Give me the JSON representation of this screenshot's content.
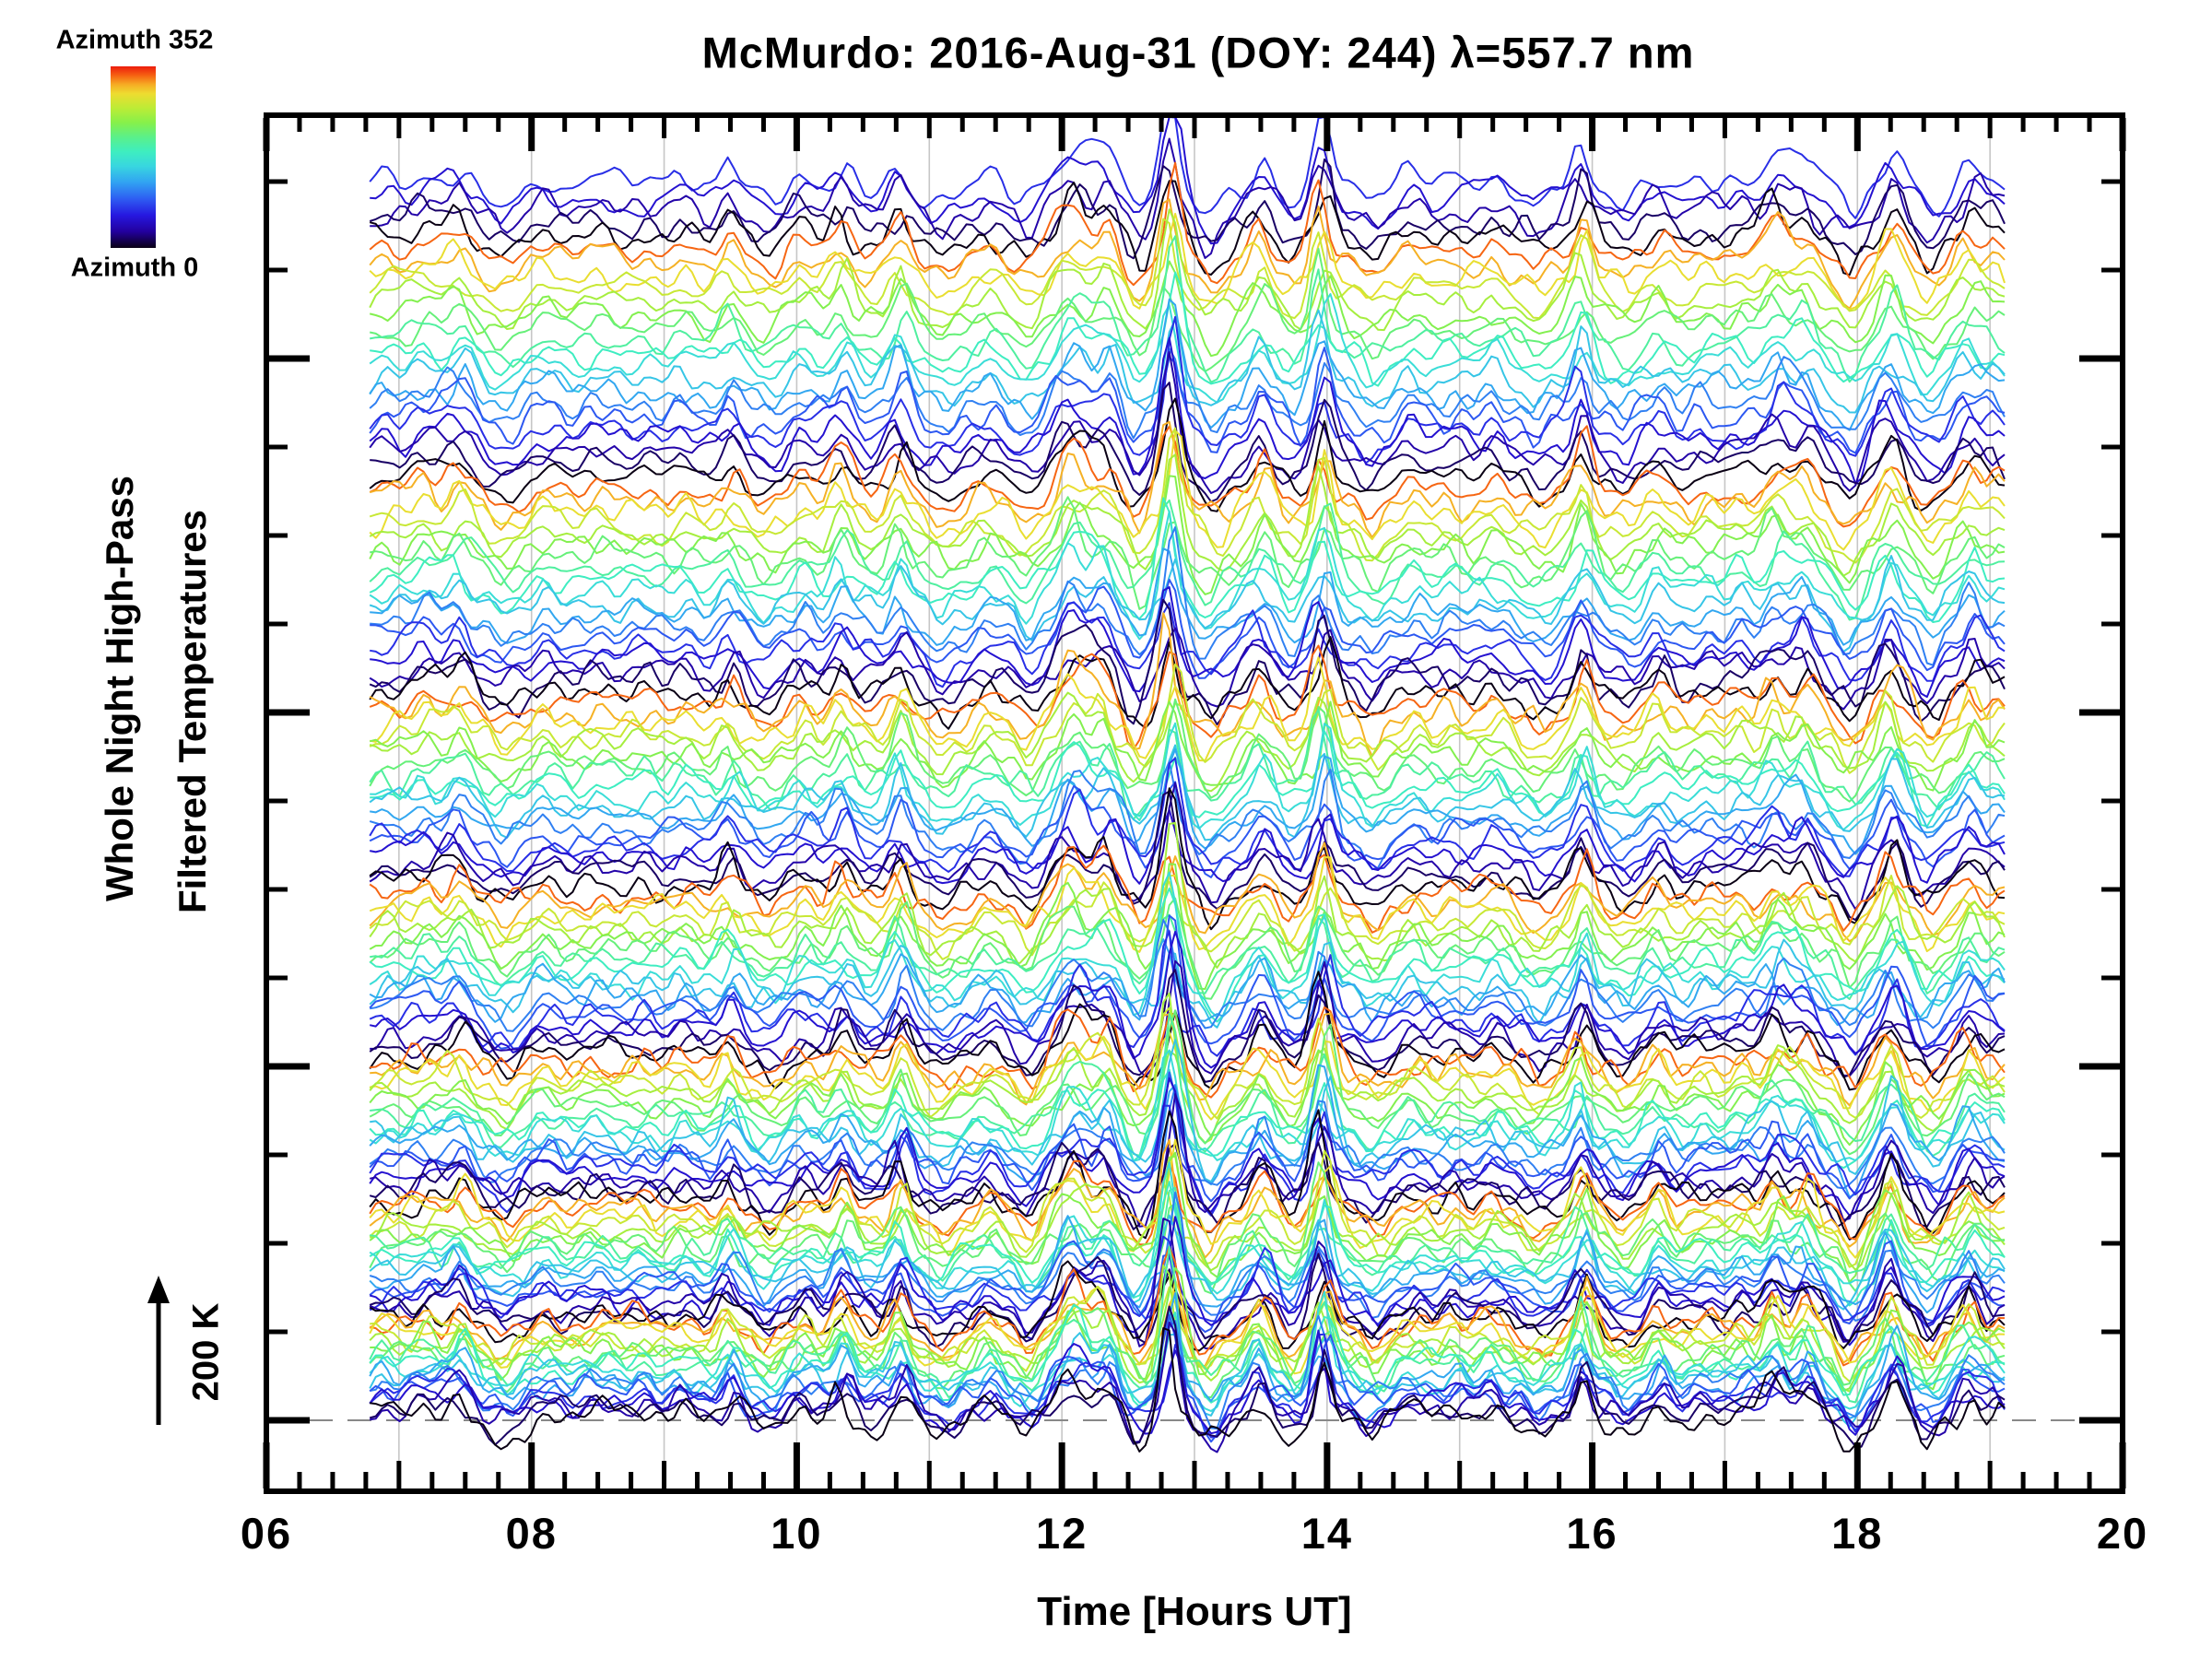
{
  "title": "McMurdo: 2016-Aug-31 (DOY: 244) λ=557.7 nm",
  "colorbar": {
    "top_label": "Azimuth 352",
    "bottom_label": "Azimuth 0",
    "gradient_stops": [
      {
        "t": 0.0,
        "color": "#0a0014"
      },
      {
        "t": 0.09,
        "color": "#23009e"
      },
      {
        "t": 0.18,
        "color": "#2618e0"
      },
      {
        "t": 0.27,
        "color": "#2e5df2"
      },
      {
        "t": 0.36,
        "color": "#31a2f2"
      },
      {
        "t": 0.45,
        "color": "#38d6e0"
      },
      {
        "t": 0.53,
        "color": "#3eeec0"
      },
      {
        "t": 0.61,
        "color": "#5af08a"
      },
      {
        "t": 0.69,
        "color": "#86f04a"
      },
      {
        "t": 0.77,
        "color": "#bcec36"
      },
      {
        "t": 0.85,
        "color": "#eedc30"
      },
      {
        "t": 0.9,
        "color": "#f6ac24"
      },
      {
        "t": 0.95,
        "color": "#f66212"
      },
      {
        "t": 1.0,
        "color": "#ec1c0c"
      }
    ]
  },
  "y_axis": {
    "label_lines": [
      "Whole Night High-Pass",
      "Filtered Temperatures"
    ]
  },
  "scale_arrow": {
    "label": "200 K"
  },
  "x_axis": {
    "label": "Time [Hours UT]",
    "major_tick_hours": [
      6,
      8,
      10,
      12,
      14,
      16,
      18,
      20
    ],
    "major_tick_labels": [
      "06",
      "08",
      "10",
      "12",
      "14",
      "16",
      "18",
      "20"
    ],
    "minor_tick_step_hours": 0.25,
    "gridline_hours": [
      7,
      8,
      9,
      10,
      11,
      12,
      13,
      14,
      15,
      16,
      17,
      18,
      19
    ],
    "range": [
      6,
      20
    ]
  },
  "colors": {
    "gridline": "#c6c6c6",
    "dashed_reference": "#888888",
    "frame": "#000000"
  },
  "chart_data": {
    "type": "line",
    "title": "McMurdo: 2016-Aug-31 (DOY: 244) λ=557.7 nm",
    "xlabel": "Time [Hours UT]",
    "ylabel": "Whole Night High-Pass Filtered Temperatures",
    "legend": {
      "colorbar_top": "Azimuth 352",
      "colorbar_bottom": "Azimuth 0"
    },
    "x_axis_range_hours": [
      6,
      20
    ],
    "data_x_range_hours": [
      6.78,
      19.12
    ],
    "temperature_scale_bar_K": 200,
    "n_traces": 138,
    "traces_per_color_cycle": 19,
    "azimuth_color_min": 0,
    "azimuth_color_max": 352,
    "black_trace_color_index_in_cycle": 4,
    "sample_step_hours": 0.045,
    "grid": "vertical gridlines at every hour",
    "dashed_line": "horizontal dashed gray reference line at bottom-trace baseline",
    "wave_events": [
      {
        "t": 6.9,
        "amp": 12,
        "w": 0.12
      },
      {
        "t": 7.2,
        "amp": 20,
        "w": 0.12
      },
      {
        "t": 7.45,
        "amp": 30,
        "w": 0.1
      },
      {
        "t": 7.8,
        "amp": -14,
        "w": 0.12
      },
      {
        "t": 8.1,
        "amp": 14,
        "w": 0.12
      },
      {
        "t": 8.5,
        "amp": 12,
        "w": 0.15
      },
      {
        "t": 8.85,
        "amp": 10,
        "w": 0.12
      },
      {
        "t": 9.15,
        "amp": 14,
        "w": 0.1
      },
      {
        "t": 9.5,
        "amp": 28,
        "w": 0.08
      },
      {
        "t": 9.78,
        "amp": -12,
        "w": 0.1
      },
      {
        "t": 10.05,
        "amp": 18,
        "w": 0.1
      },
      {
        "t": 10.35,
        "amp": 34,
        "w": 0.09
      },
      {
        "t": 10.78,
        "amp": 38,
        "w": 0.08
      },
      {
        "t": 11.1,
        "amp": -16,
        "w": 0.12
      },
      {
        "t": 11.45,
        "amp": 14,
        "w": 0.1
      },
      {
        "t": 11.75,
        "amp": -18,
        "w": 0.1
      },
      {
        "t": 12.08,
        "amp": 50,
        "w": 0.14
      },
      {
        "t": 12.33,
        "amp": 38,
        "w": 0.1
      },
      {
        "t": 12.58,
        "amp": -26,
        "w": 0.09
      },
      {
        "t": 12.82,
        "amp": 92,
        "w": 0.075
      },
      {
        "t": 13.12,
        "amp": -30,
        "w": 0.11
      },
      {
        "t": 13.5,
        "amp": 34,
        "w": 0.09
      },
      {
        "t": 13.75,
        "amp": -14,
        "w": 0.08
      },
      {
        "t": 13.97,
        "amp": 70,
        "w": 0.08
      },
      {
        "t": 14.35,
        "amp": -18,
        "w": 0.1
      },
      {
        "t": 14.65,
        "amp": 14,
        "w": 0.1
      },
      {
        "t": 14.95,
        "amp": 12,
        "w": 0.1
      },
      {
        "t": 15.25,
        "amp": 16,
        "w": 0.1
      },
      {
        "t": 15.6,
        "amp": -14,
        "w": 0.09
      },
      {
        "t": 15.92,
        "amp": 46,
        "w": 0.08
      },
      {
        "t": 16.25,
        "amp": -12,
        "w": 0.09
      },
      {
        "t": 16.5,
        "amp": 22,
        "w": 0.09
      },
      {
        "t": 16.85,
        "amp": 12,
        "w": 0.1
      },
      {
        "t": 17.12,
        "amp": 16,
        "w": 0.1
      },
      {
        "t": 17.38,
        "amp": 36,
        "w": 0.1
      },
      {
        "t": 17.6,
        "amp": 30,
        "w": 0.09
      },
      {
        "t": 17.95,
        "amp": -30,
        "w": 0.1
      },
      {
        "t": 18.25,
        "amp": 46,
        "w": 0.09
      },
      {
        "t": 18.55,
        "amp": -22,
        "w": 0.09
      },
      {
        "t": 18.85,
        "amp": 32,
        "w": 0.09
      },
      {
        "t": 19.05,
        "amp": 14,
        "w": 0.08
      }
    ],
    "noise_components": [
      {
        "period": 0.22,
        "amp": 4.5
      },
      {
        "period": 0.35,
        "amp": 4.0
      },
      {
        "period": 0.55,
        "amp": 3.5
      },
      {
        "period": 0.9,
        "amp": 3.5
      },
      {
        "period": 1.5,
        "amp": 4.0
      },
      {
        "period": 2.8,
        "amp": 5.0
      }
    ]
  }
}
